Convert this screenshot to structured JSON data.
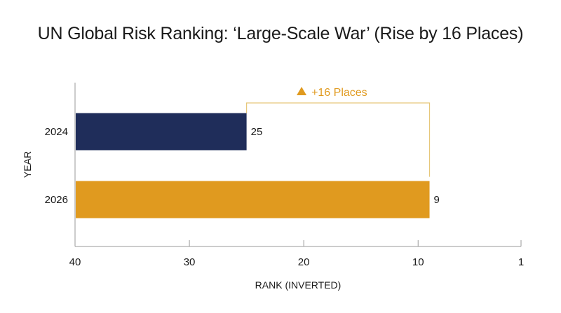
{
  "chart_data": {
    "type": "bar",
    "orientation": "horizontal",
    "title": "UN Global Risk Ranking: ‘Large-Scale War’ (Rise by 16 Places)",
    "xlabel": "RANK (INVERTED)",
    "ylabel": "YEAR",
    "categories": [
      "2024",
      "2026"
    ],
    "values": [
      25,
      9
    ],
    "value_labels": [
      "25",
      "9"
    ],
    "colors": [
      "#1f2d5a",
      "#e09a1f"
    ],
    "xlim": [
      40,
      1
    ],
    "x_inverted": true,
    "x_ticks": [
      40,
      30,
      20,
      10,
      1
    ],
    "x_tick_labels": [
      "40",
      "30",
      "20",
      "10",
      "1"
    ],
    "grid": false,
    "annotation": {
      "text": "+16 Places",
      "marker": "triangle-up",
      "color": "#e09a1f",
      "from_value": 25,
      "to_value": 9
    }
  }
}
